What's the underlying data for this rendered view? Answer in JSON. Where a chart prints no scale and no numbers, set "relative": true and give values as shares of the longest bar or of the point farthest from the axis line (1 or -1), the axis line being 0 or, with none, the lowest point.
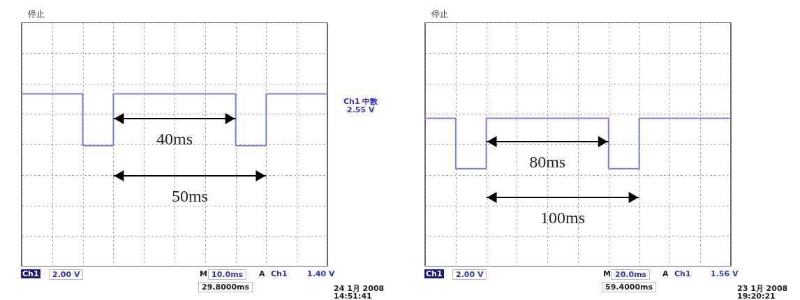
{
  "chart_data": [
    {
      "type": "step",
      "relative": true,
      "grid": true,
      "categories": [
        null,
        null,
        null,
        null,
        null,
        null,
        null,
        null,
        null,
        null,
        null
      ],
      "series": [
        {
          "color": "#7c80e6",
          "values": [
            1,
            1,
            0.7,
            1,
            1,
            1,
            1,
            0.7,
            1,
            1,
            1
          ]
        }
      ],
      "annotations": [
        "停止",
        "40ms",
        "50ms",
        "Ch1",
        "2.00 V",
        "M",
        "10.0ms",
        "A",
        "Ch1",
        "1.40 V",
        "29.8000ms",
        "24 1月  2008",
        "14:51:41",
        "Ch1 中數",
        "2.55 V"
      ]
    },
    {
      "type": "step",
      "relative": true,
      "grid": true,
      "categories": [
        null,
        null,
        null,
        null,
        null,
        null,
        null,
        null,
        null,
        null,
        null
      ],
      "series": [
        {
          "color": "#7c80e6",
          "values": [
            1,
            0.66,
            1,
            1,
            1,
            1,
            0.66,
            1,
            1,
            1,
            1
          ]
        }
      ],
      "annotations": [
        "停止",
        "80ms",
        "100ms",
        "Ch1",
        "2.00 V",
        "M",
        "20.0ms",
        "A",
        "Ch1",
        "1.56 V",
        "59.4000ms",
        "23 1月  2008",
        "19:20:21"
      ]
    }
  ]
}
